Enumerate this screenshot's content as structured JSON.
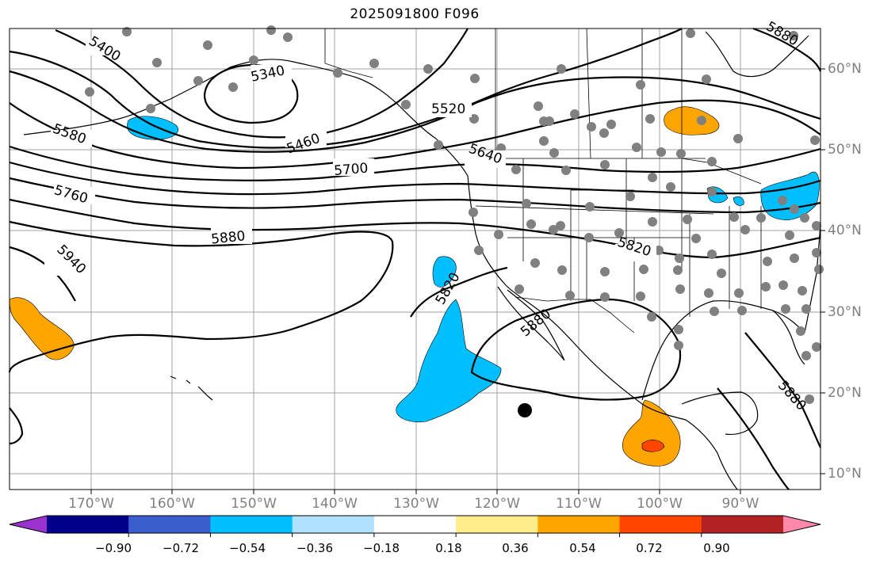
{
  "title": "2025091800 F096",
  "longitude_labels": [
    "170°W",
    "160°W",
    "150°W",
    "140°W",
    "130°W",
    "120°W",
    "110°W",
    "100°W",
    "90°W"
  ],
  "latitude_labels": [
    "60°N",
    "50°N",
    "40°N",
    "30°N",
    "20°N",
    "10°N"
  ],
  "contour_labels": [
    "5400",
    "5340",
    "5520",
    "5460",
    "5580",
    "5640",
    "5700",
    "5760",
    "5880",
    "5820",
    "5940",
    "5820",
    "5880",
    "5880",
    "5880"
  ],
  "colorbar": {
    "tick_labels": [
      "−0.90",
      "−0.72",
      "−0.54",
      "−0.36",
      "−0.18",
      "0.18",
      "0.36",
      "0.54",
      "0.72",
      "0.90"
    ],
    "colors": [
      "#9a32cd",
      "#00008b",
      "#3a5fcd",
      "#00bfff",
      "#b0e2ff",
      "#ffffff",
      "#ffec8b",
      "#ffa500",
      "#ff4500",
      "#b22222",
      "#ff88aa"
    ]
  },
  "fill_colors": {
    "light_blue": "#00bfff",
    "orange": "#ffa500",
    "red_orange": "#ff4500"
  }
}
